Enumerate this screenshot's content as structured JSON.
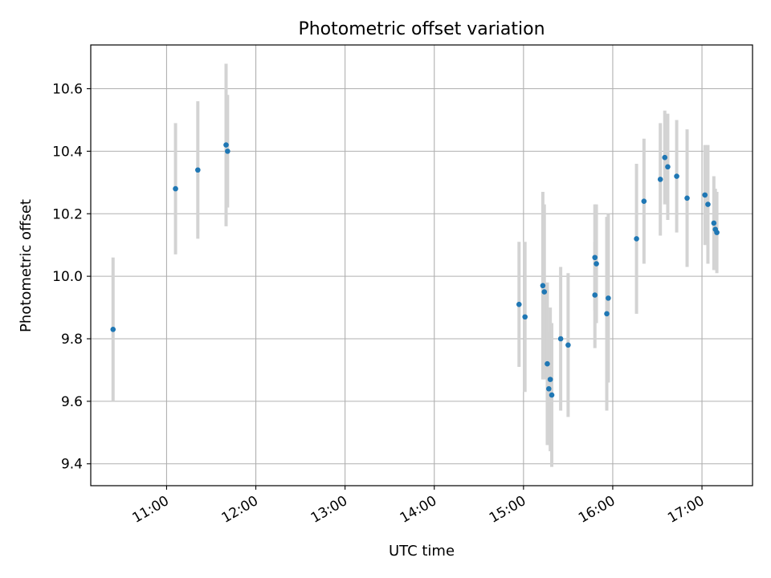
{
  "chart_data": {
    "type": "scatter",
    "title": "Photometric offset variation",
    "xlabel": "UTC time",
    "ylabel": "Photometric offset",
    "x_tick_labels": [
      "11:00",
      "12:00",
      "13:00",
      "14:00",
      "15:00",
      "16:00",
      "17:00"
    ],
    "y_tick_labels": [
      "9.4",
      "9.6",
      "9.8",
      "10.0",
      "10.2",
      "10.4",
      "10.6"
    ],
    "y_ticks": [
      9.4,
      9.6,
      9.8,
      10.0,
      10.2,
      10.4,
      10.6
    ],
    "xlim": [
      "10:09",
      "17:34"
    ],
    "ylim": [
      9.33,
      10.74
    ],
    "grid": true,
    "colors": {
      "point": "#1f77b4",
      "errorbar": "#d3d3d3",
      "grid": "#b0b0b0"
    },
    "points": [
      {
        "x": "10:24",
        "y": 9.83,
        "err": 0.23
      },
      {
        "x": "11:06",
        "y": 10.28,
        "err": 0.21
      },
      {
        "x": "11:21",
        "y": 10.34,
        "err": 0.22
      },
      {
        "x": "11:40",
        "y": 10.42,
        "err": 0.26
      },
      {
        "x": "11:41",
        "y": 10.4,
        "err": 0.18
      },
      {
        "x": "14:57",
        "y": 9.91,
        "err": 0.2
      },
      {
        "x": "15:01",
        "y": 9.87,
        "err": 0.24
      },
      {
        "x": "15:13",
        "y": 9.97,
        "err": 0.3
      },
      {
        "x": "15:14",
        "y": 9.95,
        "err": 0.28
      },
      {
        "x": "15:16",
        "y": 9.72,
        "err": 0.26
      },
      {
        "x": "15:17",
        "y": 9.64,
        "err": 0.18
      },
      {
        "x": "15:18",
        "y": 9.67,
        "err": 0.23
      },
      {
        "x": "15:19",
        "y": 9.62,
        "err": 0.23
      },
      {
        "x": "15:25",
        "y": 9.8,
        "err": 0.23
      },
      {
        "x": "15:30",
        "y": 9.78,
        "err": 0.23
      },
      {
        "x": "15:48",
        "y": 9.94,
        "err": 0.17
      },
      {
        "x": "15:48",
        "y": 10.06,
        "err": 0.17
      },
      {
        "x": "15:49",
        "y": 10.04,
        "err": 0.19
      },
      {
        "x": "15:56",
        "y": 9.88,
        "err": 0.31
      },
      {
        "x": "15:57",
        "y": 9.93,
        "err": 0.27
      },
      {
        "x": "16:16",
        "y": 10.12,
        "err": 0.24
      },
      {
        "x": "16:21",
        "y": 10.24,
        "err": 0.2
      },
      {
        "x": "16:32",
        "y": 10.31,
        "err": 0.18
      },
      {
        "x": "16:35",
        "y": 10.38,
        "err": 0.15
      },
      {
        "x": "16:37",
        "y": 10.35,
        "err": 0.17
      },
      {
        "x": "16:43",
        "y": 10.32,
        "err": 0.18
      },
      {
        "x": "16:50",
        "y": 10.25,
        "err": 0.22
      },
      {
        "x": "17:02",
        "y": 10.26,
        "err": 0.16
      },
      {
        "x": "17:04",
        "y": 10.23,
        "err": 0.19
      },
      {
        "x": "17:08",
        "y": 10.17,
        "err": 0.15
      },
      {
        "x": "17:09",
        "y": 10.15,
        "err": 0.13
      },
      {
        "x": "17:10",
        "y": 10.14,
        "err": 0.13
      }
    ]
  }
}
